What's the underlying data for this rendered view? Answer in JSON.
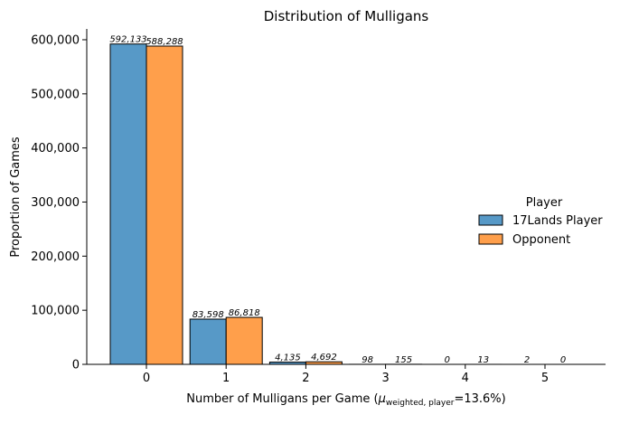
{
  "chart_data": {
    "type": "bar",
    "title": "Distribution of Mulligans",
    "xlabel_prefix": "Number of Mulligans per Game (",
    "xlabel_mu": "μ",
    "xlabel_sub": "weighted, player",
    "xlabel_suffix": "=13.6%)",
    "ylabel": "Proportion of Games",
    "categories": [
      "0",
      "1",
      "2",
      "3",
      "4",
      "5"
    ],
    "ylim": [
      0,
      620000
    ],
    "yticks": [
      0,
      100000,
      200000,
      300000,
      400000,
      500000,
      600000
    ],
    "ytick_labels": [
      "0",
      "100,000",
      "200,000",
      "300,000",
      "400,000",
      "500,000",
      "600,000"
    ],
    "legend_title": "Player",
    "legend_position": "right",
    "series": [
      {
        "name": "17Lands Player",
        "color": "#5799c7",
        "values": [
          592133,
          83598,
          4135,
          98,
          0,
          2
        ],
        "labels": [
          "592,133",
          "83,598",
          "4,135",
          "98",
          "0",
          "2"
        ]
      },
      {
        "name": "Opponent",
        "color": "#ff9f4b",
        "values": [
          588288,
          86818,
          4692,
          155,
          13,
          0
        ],
        "labels": [
          "588,288",
          "86,818",
          "4,692",
          "155",
          "13",
          "0"
        ]
      }
    ]
  }
}
